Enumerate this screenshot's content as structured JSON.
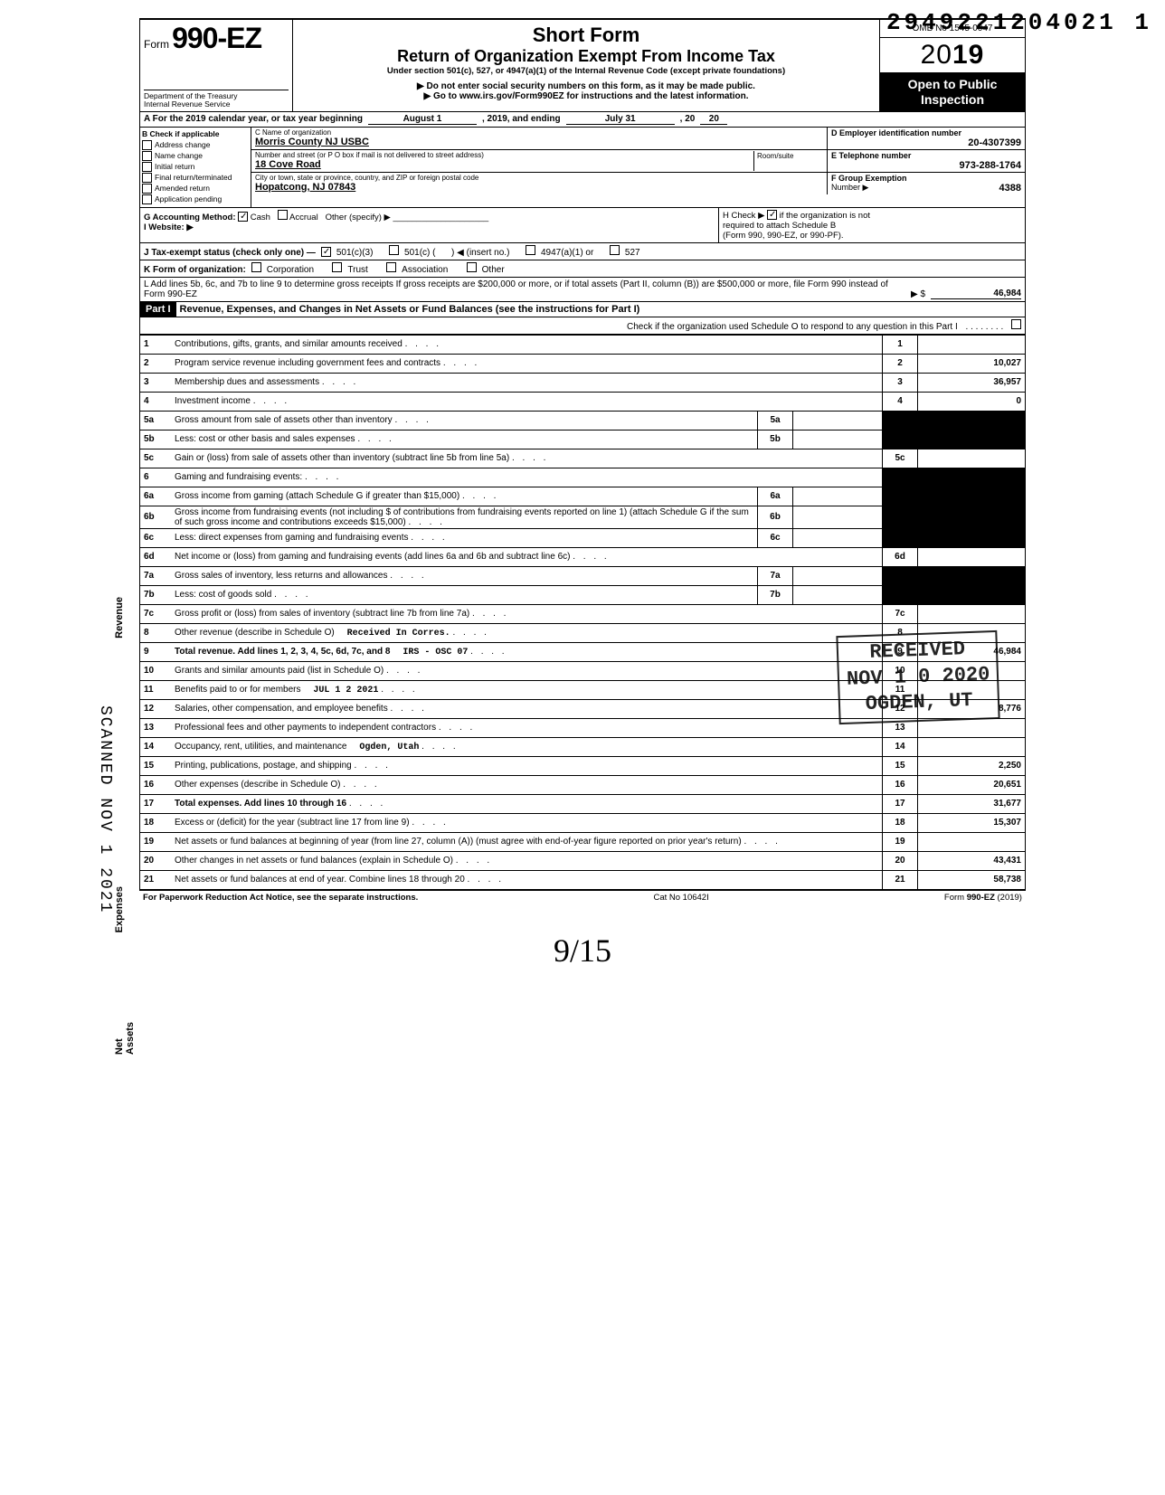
{
  "top_code": "2949221204021  1",
  "form": {
    "prefix": "Form",
    "number": "990-EZ",
    "dept1": "Department of the Treasury",
    "dept2": "Internal Revenue Service"
  },
  "title": {
    "short": "Short Form",
    "ret": "Return of Organization Exempt From Income Tax",
    "under": "Under section 501(c), 527, or 4947(a)(1) of the Internal Revenue Code (except private foundations)",
    "donot": "▶ Do not enter social security numbers on this form, as it may be made public.",
    "goto": "▶ Go to www.irs.gov/Form990EZ for instructions and the latest information."
  },
  "rightbox": {
    "omb": "OMB No 1545-0047",
    "year_prefix": "20",
    "year_bold": "19",
    "open1": "Open to Public",
    "open2": "Inspection"
  },
  "row_a": {
    "lead": "A  For the 2019 calendar year, or tax year beginning",
    "begin": "August 1",
    "mid": ", 2019, and ending",
    "end": "July 31",
    "tail": ", 20",
    "yy": "20"
  },
  "col_b": {
    "header": "B  Check if applicable",
    "items": [
      "Address change",
      "Name change",
      "Initial return",
      "Final return/terminated",
      "Amended return",
      "Application pending"
    ]
  },
  "org": {
    "c_label": "C  Name of organization",
    "c_value": "Morris County NJ USBC",
    "addr_label": "Number and street (or P O  box if mail is not delivered to street address)",
    "addr_value": "18 Cove Road",
    "room_label": "Room/suite",
    "city_label": "City or town, state or province, country, and ZIP or foreign postal code",
    "city_value": "Hopatcong, NJ 07843"
  },
  "d": {
    "label": "D Employer identification number",
    "value": "20-4307399"
  },
  "e": {
    "label": "E Telephone number",
    "value": "973-288-1764"
  },
  "f": {
    "label": "F Group Exemption",
    "sub": "Number ▶",
    "value": "4388"
  },
  "g": {
    "label": "G  Accounting Method:",
    "cash": "Cash",
    "accrual": "Accrual",
    "other": "Other (specify) ▶"
  },
  "i": {
    "label": "I   Website: ▶"
  },
  "h": {
    "text1": "H  Check ▶",
    "text2": "if the organization is not",
    "text3": "required to attach Schedule B",
    "text4": "(Form 990, 990-EZ, or 990-PF)."
  },
  "j": {
    "label": "J  Tax-exempt status (check only one) —",
    "o1": "501(c)(3)",
    "o2": "501(c) (",
    "insert": ") ◀ (insert no.)",
    "o3": "4947(a)(1) or",
    "o4": "527"
  },
  "k": {
    "label": "K  Form of organization:",
    "o1": "Corporation",
    "o2": "Trust",
    "o3": "Association",
    "o4": "Other"
  },
  "l": {
    "text": "L  Add lines 5b, 6c, and 7b to line 9 to determine gross receipts  If gross receipts are $200,000 or more, or if total assets (Part II, column (B)) are $500,000 or more, file Form 990 instead of Form 990-EZ",
    "arrow": "▶   $",
    "value": "46,984"
  },
  "part1": {
    "tag": "Part I",
    "title": "Revenue, Expenses, and Changes in Net Assets or Fund Balances (see the instructions for Part I)",
    "check": "Check if the organization used Schedule O to respond to any question in this Part I"
  },
  "side": {
    "revenue": "Revenue",
    "expenses": "Expenses",
    "netassets": "Net Assets",
    "scanned": "SCANNED NOV 1 2021"
  },
  "lines": {
    "1": {
      "d": "Contributions, gifts, grants, and similar amounts received",
      "a": ""
    },
    "2": {
      "d": "Program service revenue including government fees and contracts",
      "a": "10,027"
    },
    "3": {
      "d": "Membership dues and assessments",
      "a": "36,957"
    },
    "4": {
      "d": "Investment income",
      "a": "0"
    },
    "5a": {
      "d": "Gross amount from sale of assets other than inventory",
      "mb": "5a"
    },
    "5b": {
      "d": "Less: cost or other basis and sales expenses",
      "mb": "5b"
    },
    "5c": {
      "d": "Gain or (loss) from sale of assets other than inventory (subtract line 5b from line 5a)",
      "a": ""
    },
    "6": {
      "d": "Gaming and fundraising events:"
    },
    "6a": {
      "d": "Gross income from gaming (attach Schedule G if greater than $15,000)",
      "mb": "6a"
    },
    "6b": {
      "d": "Gross income from fundraising events (not including  $                              of contributions from fundraising events reported on line 1) (attach Schedule G if the sum of such gross income and contributions exceeds $15,000)",
      "mb": "6b"
    },
    "6c": {
      "d": "Less: direct expenses from gaming and fundraising events",
      "mb": "6c"
    },
    "6d": {
      "d": "Net income or (loss) from gaming and fundraising events (add lines 6a and 6b and subtract line 6c)",
      "a": ""
    },
    "7a": {
      "d": "Gross sales of inventory, less returns and allowances",
      "mb": "7a"
    },
    "7b": {
      "d": "Less: cost of goods sold",
      "mb": "7b"
    },
    "7c": {
      "d": "Gross profit or (loss) from sales of inventory (subtract line 7b from line 7a)",
      "a": ""
    },
    "8": {
      "d": "Other revenue (describe in Schedule O)",
      "a": "",
      "stamp": "Received In Corres."
    },
    "9": {
      "d": "Total revenue. Add lines 1, 2, 3, 4, 5c, 6d, 7c, and 8",
      "a": "46,984",
      "stamp": "IRS - OSC  07",
      "bold": true
    },
    "10": {
      "d": "Grants and similar amounts paid (list in Schedule O)",
      "a": ""
    },
    "11": {
      "d": "Benefits paid to or for members",
      "a": "",
      "stamp": "JUL 1 2 2021"
    },
    "12": {
      "d": "Salaries, other compensation, and employee benefits",
      "a": "8,776"
    },
    "13": {
      "d": "Professional fees and other payments to independent contractors",
      "a": ""
    },
    "14": {
      "d": "Occupancy, rent, utilities, and maintenance",
      "a": "",
      "stamp": "Ogden, Utah"
    },
    "15": {
      "d": "Printing, publications, postage, and shipping",
      "a": "2,250"
    },
    "16": {
      "d": "Other expenses (describe in Schedule O)",
      "a": "20,651"
    },
    "17": {
      "d": "Total expenses. Add lines 10 through 16",
      "a": "31,677",
      "bold": true
    },
    "18": {
      "d": "Excess or (deficit) for the year (subtract line 17 from line 9)",
      "a": "15,307"
    },
    "19": {
      "d": "Net assets or fund balances at beginning of year (from line 27, column (A)) (must agree with end-of-year figure reported on prior year's return)",
      "a": ""
    },
    "20": {
      "d": "Other changes in net assets or fund balances (explain in Schedule O)",
      "a": "43,431"
    },
    "21": {
      "d": "Net assets or fund balances at end of year. Combine lines 18 through 20",
      "a": "58,738"
    }
  },
  "received_stamp": {
    "l1": "RECEIVED",
    "l2": "NOV 1 0 2020",
    "l3": "OGDEN, UT"
  },
  "footer": {
    "left": "For Paperwork Reduction Act Notice, see the separate instructions.",
    "mid": "Cat  No  10642I",
    "right": "Form 990-EZ (2019)"
  },
  "signature": "9/15",
  "bottom_right": "21"
}
